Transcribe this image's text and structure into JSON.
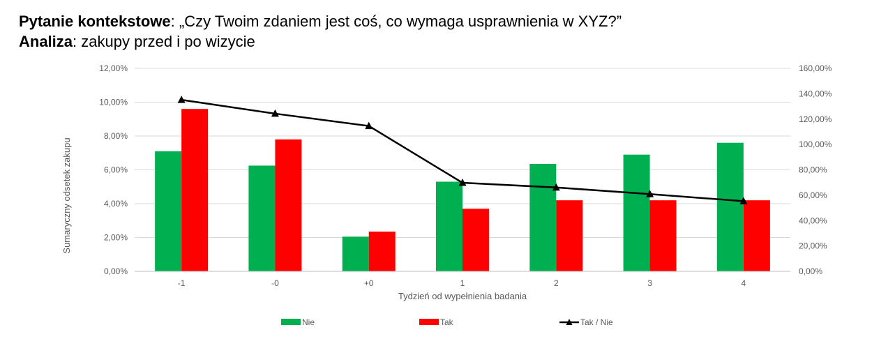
{
  "header": {
    "line1_bold": "Pytanie kontekstowe",
    "line1_rest": ": „Czy Twoim zdaniem jest coś, co wymaga usprawnienia w XYZ?”",
    "line2_bold": "Analiza",
    "line2_rest": ": zakupy przed i po wizycie"
  },
  "chart_data": {
    "type": "bar",
    "categories": [
      "-1",
      "-0",
      "+0",
      "1",
      "2",
      "3",
      "4"
    ],
    "series": [
      {
        "name": "Nie",
        "type": "bar",
        "axis": "left",
        "color": "#00B050",
        "values": [
          7.1,
          6.25,
          2.05,
          5.3,
          6.35,
          6.9,
          7.6
        ]
      },
      {
        "name": "Tak",
        "type": "bar",
        "axis": "left",
        "color": "#FF0000",
        "values": [
          9.6,
          7.8,
          2.35,
          3.7,
          4.2,
          4.2,
          4.2
        ]
      },
      {
        "name": "Tak / Nie",
        "type": "line",
        "axis": "right",
        "color": "#000000",
        "marker": "triangle",
        "values": [
          135.2,
          124.3,
          114.6,
          69.8,
          66.1,
          60.9,
          55.3
        ]
      }
    ],
    "xlabel": "Tydzień od wypełnienia badania",
    "ylabel": "Sumaryczny odsetek zakupu",
    "ylim": [
      0,
      12
    ],
    "y_ticks": [
      "0,00%",
      "2,00%",
      "4,00%",
      "6,00%",
      "8,00%",
      "10,00%",
      "12,00%"
    ],
    "y2lim": [
      0,
      160
    ],
    "y2_ticks": [
      "0,00%",
      "20,00%",
      "40,00%",
      "60,00%",
      "80,00%",
      "100,00%",
      "120,00%",
      "140,00%",
      "160,00%"
    ],
    "grid": true,
    "legend": "bottom"
  }
}
